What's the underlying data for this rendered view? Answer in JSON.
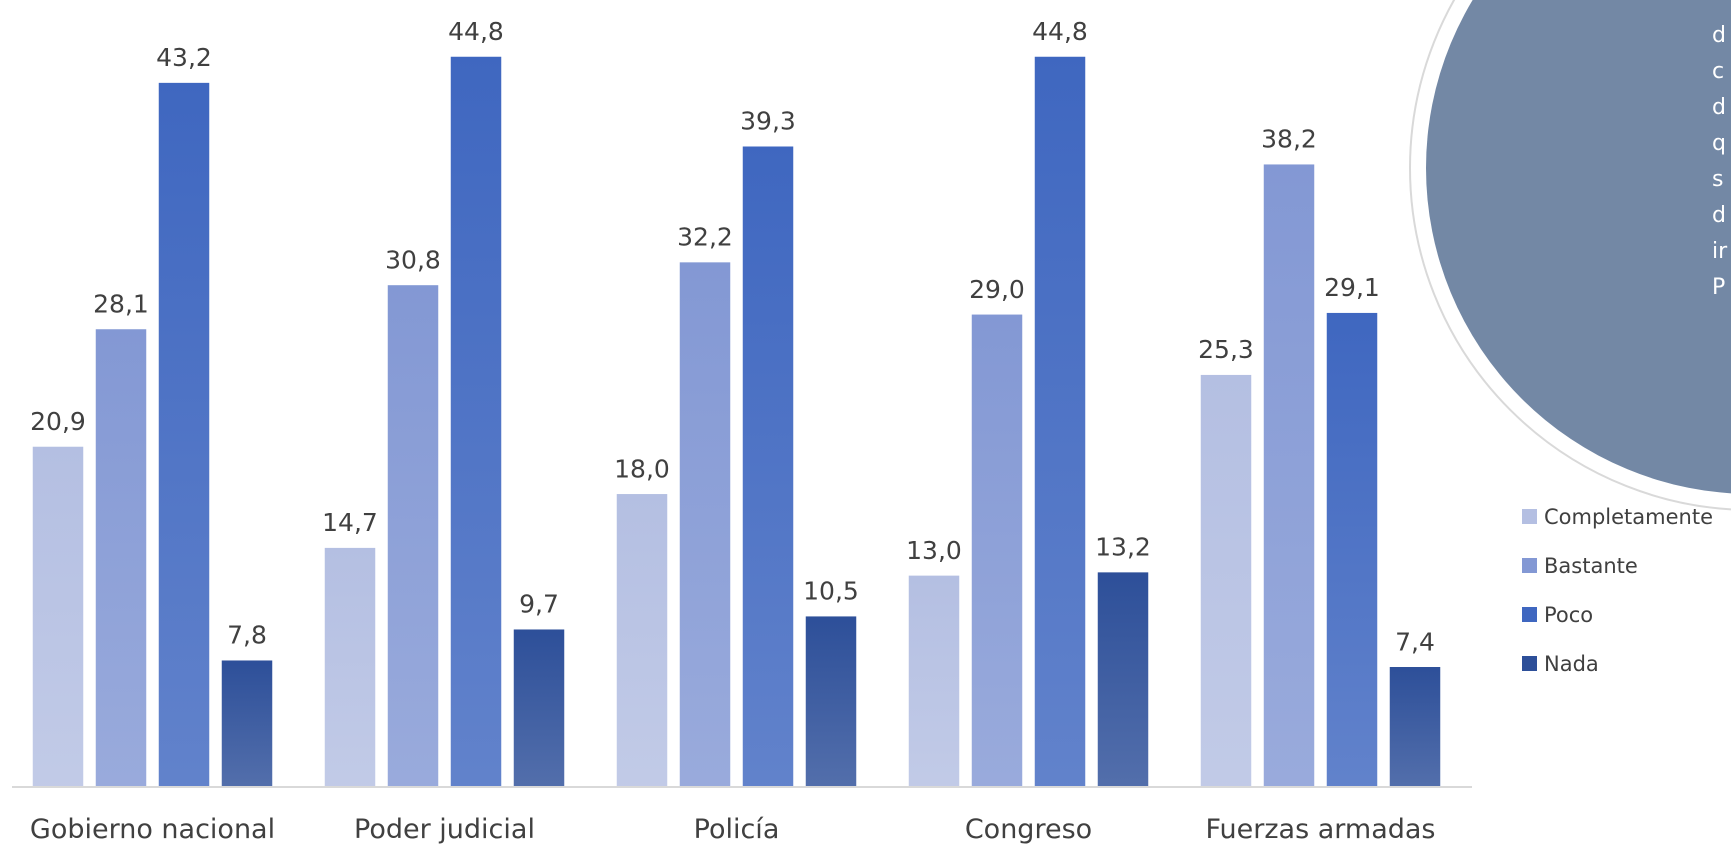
{
  "chart_data": {
    "type": "bar",
    "categories": [
      "Gobierno nacional",
      "Poder judicial",
      "Policía",
      "Congreso",
      "Fuerzas armadas"
    ],
    "series": [
      {
        "name": "Completamente",
        "color": "#b4bfe2",
        "values": [
          20.9,
          14.7,
          18.0,
          13.0,
          25.3
        ]
      },
      {
        "name": "Bastante",
        "color": "#8398d4",
        "values": [
          28.1,
          30.8,
          32.2,
          29.0,
          38.2
        ]
      },
      {
        "name": "Poco",
        "color": "#3f67c0",
        "values": [
          43.2,
          44.8,
          39.3,
          44.8,
          29.1
        ]
      },
      {
        "name": "Nada",
        "color": "#2d4f99",
        "values": [
          7.8,
          9.7,
          10.5,
          13.2,
          7.4
        ]
      }
    ],
    "value_labels": [
      [
        "20,9",
        "14,7",
        "18,0",
        "13,0",
        "25,3"
      ],
      [
        "28,1",
        "30,8",
        "32,2",
        "29,0",
        "38,2"
      ],
      [
        "43,2",
        "44,8",
        "39,3",
        "44,8",
        "29,1"
      ],
      [
        "7,8",
        "9,7",
        "10,5",
        "13,2",
        "7,4"
      ]
    ],
    "ylim": [
      0,
      48
    ],
    "grid": false,
    "legend_position": "right"
  },
  "callout": {
    "fill_color": "#7388a5",
    "lines": [
      "d",
      "c",
      "d",
      "q",
      "s",
      "d",
      "ir",
      "P"
    ]
  }
}
